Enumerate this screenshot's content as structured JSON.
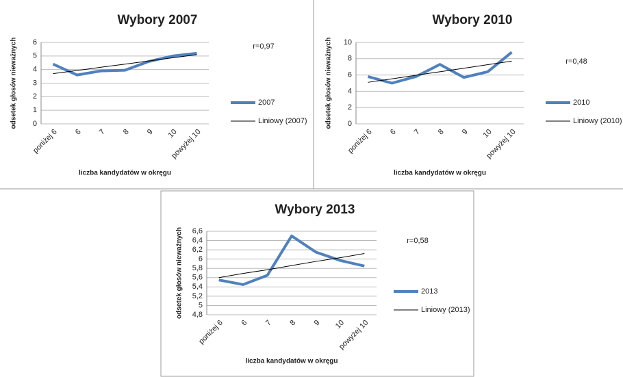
{
  "chart_data": [
    {
      "type": "line",
      "title": "Wybory 2007",
      "y_label": "odsetek głosów nieważnych",
      "x_label": "liczba kandydatów w okręgu",
      "annotation": "r=0,97",
      "categories": [
        "poniżej 6",
        "6",
        "7",
        "8",
        "9",
        "10",
        "powyżej 10"
      ],
      "series": [
        {
          "name": "2007",
          "color": "#4f81bd",
          "values": [
            4.4,
            3.6,
            3.9,
            3.95,
            4.6,
            5.0,
            5.2
          ]
        },
        {
          "name": "Liniowy (2007)",
          "color": "#000000",
          "values": [
            3.7,
            3.93,
            4.17,
            4.4,
            4.63,
            4.87,
            5.1
          ]
        }
      ],
      "ylim": [
        0,
        6
      ],
      "yticks": [
        0,
        1,
        2,
        3,
        4,
        5,
        6
      ],
      "grid": true,
      "legend": "right"
    },
    {
      "type": "line",
      "title": "Wybory 2010",
      "y_label": "odsetek głosów nieważnych",
      "x_label": "liczba kandydatów w okręgu",
      "annotation": "r=0,48",
      "categories": [
        "poniżej 6",
        "6",
        "7",
        "8",
        "9",
        "10",
        "powyżej 10"
      ],
      "series": [
        {
          "name": "2010",
          "color": "#4f81bd",
          "values": [
            5.8,
            5.0,
            5.8,
            7.3,
            5.7,
            6.4,
            8.8
          ]
        },
        {
          "name": "Liniowy (2010)",
          "color": "#000000",
          "values": [
            5.1,
            5.53,
            5.97,
            6.4,
            6.83,
            7.27,
            7.7
          ]
        }
      ],
      "ylim": [
        0,
        10
      ],
      "yticks": [
        0,
        2,
        4,
        6,
        8,
        10
      ],
      "grid": true,
      "legend": "right"
    },
    {
      "type": "line",
      "title": "Wybory 2013",
      "y_label": "odsetek głosów nieważnych",
      "x_label": "liczba kandydatów w okręgu",
      "annotation": "r=0,58",
      "categories": [
        "poniżej 6",
        "6",
        "7",
        "8",
        "9",
        "10",
        "powyżej 10"
      ],
      "series": [
        {
          "name": "2013",
          "color": "#4f81bd",
          "values": [
            5.55,
            5.45,
            5.65,
            6.5,
            6.15,
            5.97,
            5.85
          ]
        },
        {
          "name": "Liniowy (2013)",
          "color": "#000000",
          "values": [
            5.6,
            5.69,
            5.77,
            5.86,
            5.95,
            6.03,
            6.12
          ]
        }
      ],
      "ylim": [
        4.8,
        6.6
      ],
      "yticks": [
        {
          "value": 4.8,
          "label": "4,8"
        },
        5,
        {
          "value": 5.2,
          "label": "5,2"
        },
        {
          "value": 5.4,
          "label": "5,4"
        },
        {
          "value": 5.6,
          "label": "5,6"
        },
        {
          "value": 5.8,
          "label": "5,8"
        },
        6,
        {
          "value": 6.2,
          "label": "6,2"
        },
        {
          "value": 6.4,
          "label": "6,4"
        },
        {
          "value": 6.6,
          "label": "6,6"
        }
      ],
      "grid": true,
      "legend": "right"
    }
  ]
}
